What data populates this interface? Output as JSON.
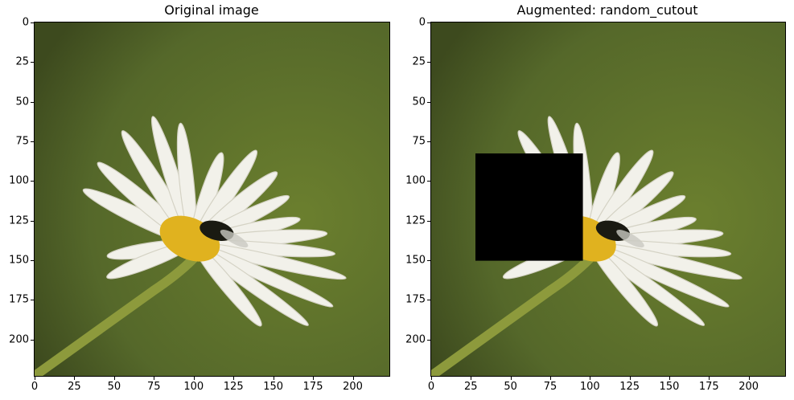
{
  "panels": [
    {
      "title": "Original image",
      "x_ticks": [
        "0",
        "25",
        "50",
        "75",
        "100",
        "125",
        "150",
        "175",
        "200"
      ],
      "y_ticks": [
        "0",
        "25",
        "50",
        "75",
        "100",
        "125",
        "150",
        "175",
        "200"
      ],
      "cutout": null
    },
    {
      "title": "Augmented: random_cutout",
      "x_ticks": [
        "0",
        "25",
        "50",
        "75",
        "100",
        "125",
        "150",
        "175",
        "200"
      ],
      "y_ticks": [
        "0",
        "25",
        "50",
        "75",
        "100",
        "125",
        "150",
        "175",
        "200"
      ],
      "cutout": {
        "x0": 28,
        "y0": 83,
        "x1": 96,
        "y1": 151,
        "color": "#000000"
      }
    }
  ],
  "image_extent": {
    "x_max": 224,
    "y_max": 224
  },
  "colors": {
    "bg_dark": "#3d4a1e",
    "bg_light": "#6b7f2e",
    "petal": "#f2f1ea",
    "center": "#e0b21f",
    "stem": "#8d9a3c"
  }
}
